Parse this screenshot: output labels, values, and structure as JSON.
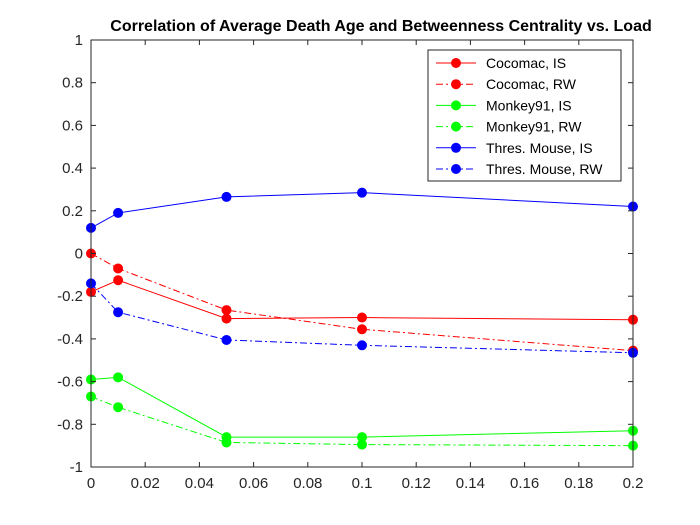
{
  "chart_data": {
    "type": "line",
    "title": "Correlation of Average Death Age and Betweenness Centrality vs. Load",
    "xlabel": "",
    "ylabel": "",
    "xlim": [
      0,
      0.2
    ],
    "ylim": [
      -1,
      1
    ],
    "x": [
      0,
      0.01,
      0.05,
      0.1,
      0.2
    ],
    "xticks": [
      0,
      0.02,
      0.04,
      0.06,
      0.08,
      0.1,
      0.12,
      0.14,
      0.16,
      0.18,
      0.2
    ],
    "xtick_labels": [
      "0",
      "0.02",
      "0.04",
      "0.06",
      "0.08",
      "0.1",
      "0.12",
      "0.14",
      "0.16",
      "0.18",
      "0.2"
    ],
    "yticks": [
      -1,
      -0.8,
      -0.6,
      -0.4,
      -0.2,
      0,
      0.2,
      0.4,
      0.6,
      0.8,
      1
    ],
    "ytick_labels": [
      "-1",
      "-0.8",
      "-0.6",
      "-0.4",
      "-0.2",
      "0",
      "0.2",
      "0.4",
      "0.6",
      "0.8",
      "1"
    ],
    "grid": false,
    "legend_position": "top-right",
    "series": [
      {
        "name": "Cocomac, IS",
        "color": "#ff0000",
        "style": "solid",
        "values": [
          -0.18,
          -0.125,
          -0.305,
          -0.3,
          -0.31
        ]
      },
      {
        "name": "Cocomac, RW",
        "color": "#ff0000",
        "style": "dashdot",
        "values": [
          0.0,
          -0.07,
          -0.265,
          -0.355,
          -0.455
        ]
      },
      {
        "name": "Monkey91, IS",
        "color": "#00ff00",
        "style": "solid",
        "values": [
          -0.59,
          -0.58,
          -0.86,
          -0.86,
          -0.83
        ]
      },
      {
        "name": "Monkey91, RW",
        "color": "#00ff00",
        "style": "dashdot",
        "values": [
          -0.67,
          -0.72,
          -0.885,
          -0.895,
          -0.9
        ]
      },
      {
        "name": "Thres. Mouse, IS",
        "color": "#0000ff",
        "style": "solid",
        "values": [
          0.12,
          0.19,
          0.265,
          0.285,
          0.22
        ]
      },
      {
        "name": "Thres. Mouse, RW",
        "color": "#0000ff",
        "style": "dashdot",
        "values": [
          -0.14,
          -0.275,
          -0.405,
          -0.43,
          -0.465
        ]
      }
    ]
  }
}
